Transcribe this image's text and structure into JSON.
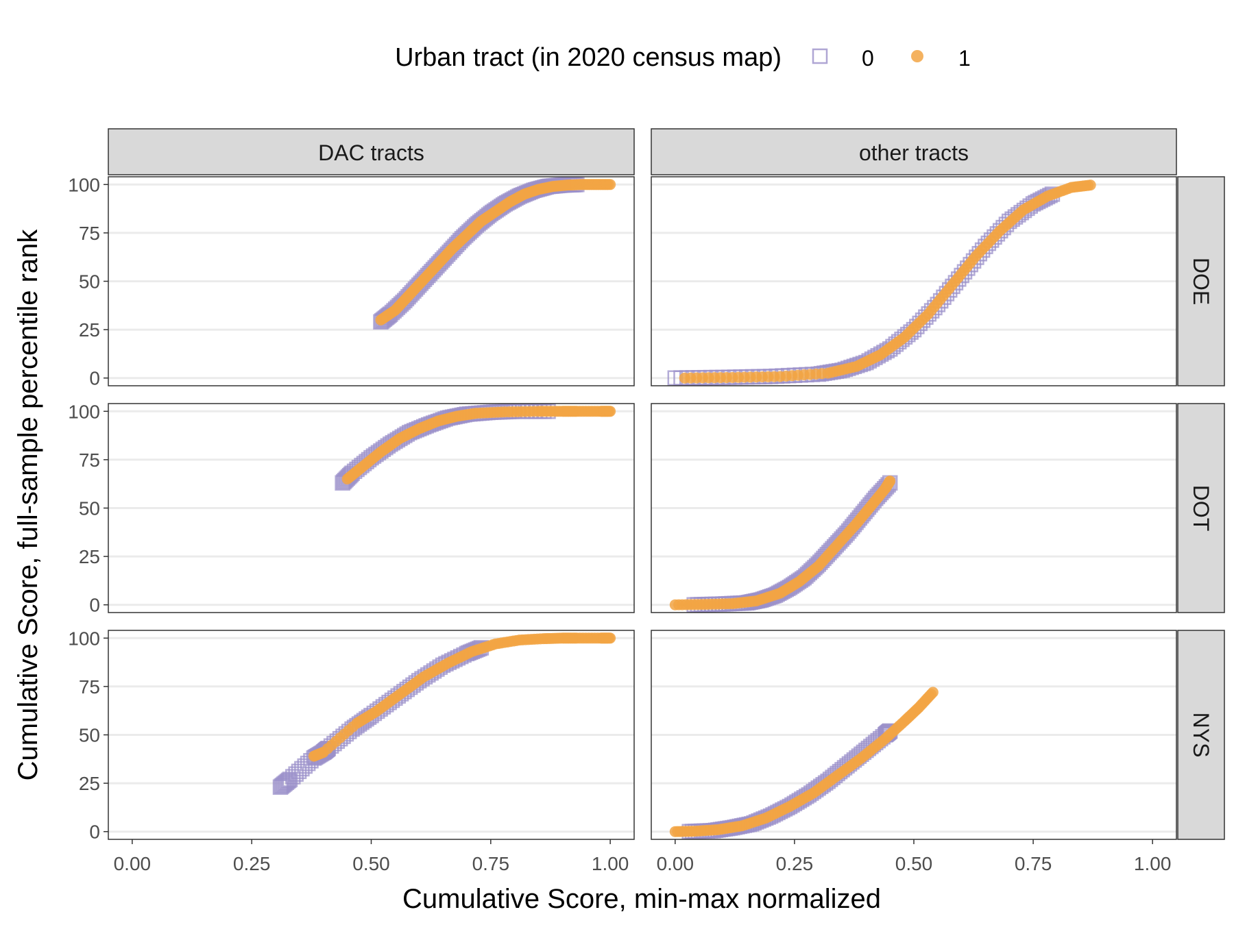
{
  "legend": {
    "title": "Urban tract (in 2020 census map)",
    "items": [
      {
        "label": "0",
        "shape": "open-square",
        "color": "#9b90c9"
      },
      {
        "label": "1",
        "shape": "filled-circle",
        "color": "#f2a444"
      }
    ]
  },
  "chart_data": {
    "type": "scatter",
    "xlabel": "Cumulative Score, min-max normalized",
    "ylabel": "Cumulative Score, full-sample percentile rank",
    "xlim": [
      -0.05,
      1.05
    ],
    "ylim": [
      -4,
      104
    ],
    "xticks": [
      "0.00",
      "0.25",
      "0.50",
      "0.75",
      "1.00"
    ],
    "yticks": [
      "0",
      "25",
      "50",
      "75",
      "100"
    ],
    "grid": "horizontal",
    "legend_position": "top",
    "columns": [
      "DAC tracts",
      "other tracts"
    ],
    "rows": [
      "DOE",
      "DOT",
      "NYS"
    ],
    "series_colors": {
      "0": "#9b90c9",
      "1": "#f2a444"
    },
    "panels": [
      {
        "row": "DOE",
        "col": "DAC tracts",
        "series": [
          {
            "name": "0",
            "points": [
              [
                0.52,
                29
              ],
              [
                0.54,
                33
              ],
              [
                0.57,
                40
              ],
              [
                0.6,
                48
              ],
              [
                0.63,
                56
              ],
              [
                0.66,
                64
              ],
              [
                0.69,
                72
              ],
              [
                0.72,
                79
              ],
              [
                0.75,
                85
              ],
              [
                0.78,
                90
              ],
              [
                0.81,
                94
              ],
              [
                0.84,
                97
              ],
              [
                0.87,
                99
              ],
              [
                0.9,
                99.7
              ],
              [
                0.93,
                100
              ]
            ]
          },
          {
            "name": "1",
            "points": [
              [
                0.52,
                30
              ],
              [
                0.55,
                35
              ],
              [
                0.58,
                43
              ],
              [
                0.61,
                51
              ],
              [
                0.64,
                59
              ],
              [
                0.67,
                67
              ],
              [
                0.7,
                74
              ],
              [
                0.73,
                81
              ],
              [
                0.76,
                86
              ],
              [
                0.79,
                91
              ],
              [
                0.82,
                95
              ],
              [
                0.85,
                97.5
              ],
              [
                0.88,
                99
              ],
              [
                0.91,
                99.7
              ],
              [
                0.94,
                100
              ],
              [
                0.97,
                100
              ],
              [
                1.0,
                100
              ]
            ]
          }
        ]
      },
      {
        "row": "DOE",
        "col": "other tracts",
        "series": [
          {
            "name": "0",
            "points": [
              [
                0.0,
                0
              ],
              [
                0.1,
                0.3
              ],
              [
                0.2,
                0.8
              ],
              [
                0.3,
                2
              ],
              [
                0.35,
                4
              ],
              [
                0.4,
                8
              ],
              [
                0.45,
                15
              ],
              [
                0.5,
                25
              ],
              [
                0.55,
                38
              ],
              [
                0.6,
                53
              ],
              [
                0.65,
                68
              ],
              [
                0.7,
                81
              ],
              [
                0.75,
                90
              ],
              [
                0.79,
                95
              ]
            ]
          },
          {
            "name": "1",
            "points": [
              [
                0.02,
                0
              ],
              [
                0.12,
                0.3
              ],
              [
                0.22,
                0.8
              ],
              [
                0.32,
                2.5
              ],
              [
                0.38,
                6
              ],
              [
                0.43,
                12
              ],
              [
                0.48,
                21
              ],
              [
                0.53,
                33
              ],
              [
                0.58,
                48
              ],
              [
                0.63,
                63
              ],
              [
                0.68,
                76
              ],
              [
                0.73,
                87
              ],
              [
                0.78,
                94
              ],
              [
                0.83,
                98.5
              ],
              [
                0.87,
                99.7
              ]
            ]
          }
        ]
      },
      {
        "row": "DOT",
        "col": "DAC tracts",
        "series": [
          {
            "name": "0",
            "points": [
              [
                0.44,
                63
              ],
              [
                0.46,
                68
              ],
              [
                0.5,
                76
              ],
              [
                0.54,
                83
              ],
              [
                0.58,
                89
              ],
              [
                0.62,
                93
              ],
              [
                0.66,
                96.5
              ],
              [
                0.7,
                98.5
              ],
              [
                0.75,
                99.5
              ],
              [
                0.8,
                100
              ],
              [
                0.87,
                100
              ]
            ]
          },
          {
            "name": "1",
            "points": [
              [
                0.45,
                65
              ],
              [
                0.48,
                71
              ],
              [
                0.52,
                79
              ],
              [
                0.56,
                86
              ],
              [
                0.6,
                91
              ],
              [
                0.64,
                95
              ],
              [
                0.68,
                97.5
              ],
              [
                0.72,
                99
              ],
              [
                0.78,
                99.7
              ],
              [
                0.85,
                100
              ],
              [
                0.9,
                100
              ],
              [
                0.93,
                100
              ],
              [
                0.98,
                100
              ],
              [
                1.0,
                100
              ]
            ]
          }
        ]
      },
      {
        "row": "DOT",
        "col": "other tracts",
        "series": [
          {
            "name": "0",
            "points": [
              [
                0.04,
                0
              ],
              [
                0.1,
                0.4
              ],
              [
                0.15,
                1
              ],
              [
                0.18,
                2.5
              ],
              [
                0.21,
                5
              ],
              [
                0.24,
                9
              ],
              [
                0.27,
                14
              ],
              [
                0.3,
                21
              ],
              [
                0.33,
                29
              ],
              [
                0.36,
                37
              ],
              [
                0.39,
                46
              ],
              [
                0.42,
                55
              ],
              [
                0.45,
                63
              ]
            ]
          },
          {
            "name": "1",
            "points": [
              [
                0.0,
                0
              ],
              [
                0.06,
                0.2
              ],
              [
                0.12,
                0.6
              ],
              [
                0.17,
                2
              ],
              [
                0.22,
                6
              ],
              [
                0.26,
                12
              ],
              [
                0.3,
                20
              ],
              [
                0.34,
                31
              ],
              [
                0.38,
                42
              ],
              [
                0.41,
                51
              ],
              [
                0.44,
                60
              ],
              [
                0.45,
                64
              ]
            ]
          }
        ]
      },
      {
        "row": "NYS",
        "col": "DAC tracts",
        "series": [
          {
            "name": "0",
            "points": [
              [
                0.31,
                23
              ],
              [
                0.33,
                27
              ],
              [
                0.38,
                38
              ],
              [
                0.4,
                41
              ],
              [
                0.41,
                43
              ],
              [
                0.46,
                53
              ],
              [
                0.5,
                60
              ],
              [
                0.55,
                69
              ],
              [
                0.6,
                78
              ],
              [
                0.65,
                86
              ],
              [
                0.7,
                92
              ],
              [
                0.73,
                95
              ]
            ]
          },
          {
            "name": "1",
            "points": [
              [
                0.38,
                39
              ],
              [
                0.4,
                41
              ],
              [
                0.47,
                56
              ],
              [
                0.51,
                62
              ],
              [
                0.56,
                71
              ],
              [
                0.61,
                80
              ],
              [
                0.66,
                87
              ],
              [
                0.71,
                93
              ],
              [
                0.76,
                97
              ],
              [
                0.81,
                99
              ],
              [
                0.86,
                99.7
              ],
              [
                0.9,
                100
              ],
              [
                0.93,
                100
              ],
              [
                0.98,
                100
              ],
              [
                1.0,
                100
              ]
            ]
          }
        ]
      },
      {
        "row": "NYS",
        "col": "other tracts",
        "series": [
          {
            "name": "0",
            "points": [
              [
                0.03,
                0
              ],
              [
                0.08,
                0.5
              ],
              [
                0.12,
                2
              ],
              [
                0.16,
                4
              ],
              [
                0.2,
                8
              ],
              [
                0.24,
                13
              ],
              [
                0.28,
                19
              ],
              [
                0.32,
                26
              ],
              [
                0.36,
                34
              ],
              [
                0.4,
                42
              ],
              [
                0.44,
                50
              ],
              [
                0.45,
                52
              ]
            ]
          },
          {
            "name": "1",
            "points": [
              [
                0.0,
                0
              ],
              [
                0.04,
                0.2
              ],
              [
                0.09,
                1
              ],
              [
                0.14,
                3
              ],
              [
                0.19,
                7
              ],
              [
                0.24,
                13
              ],
              [
                0.29,
                20
              ],
              [
                0.34,
                29
              ],
              [
                0.39,
                38
              ],
              [
                0.44,
                48
              ],
              [
                0.48,
                57
              ],
              [
                0.51,
                64
              ],
              [
                0.54,
                72
              ]
            ]
          }
        ]
      }
    ]
  }
}
